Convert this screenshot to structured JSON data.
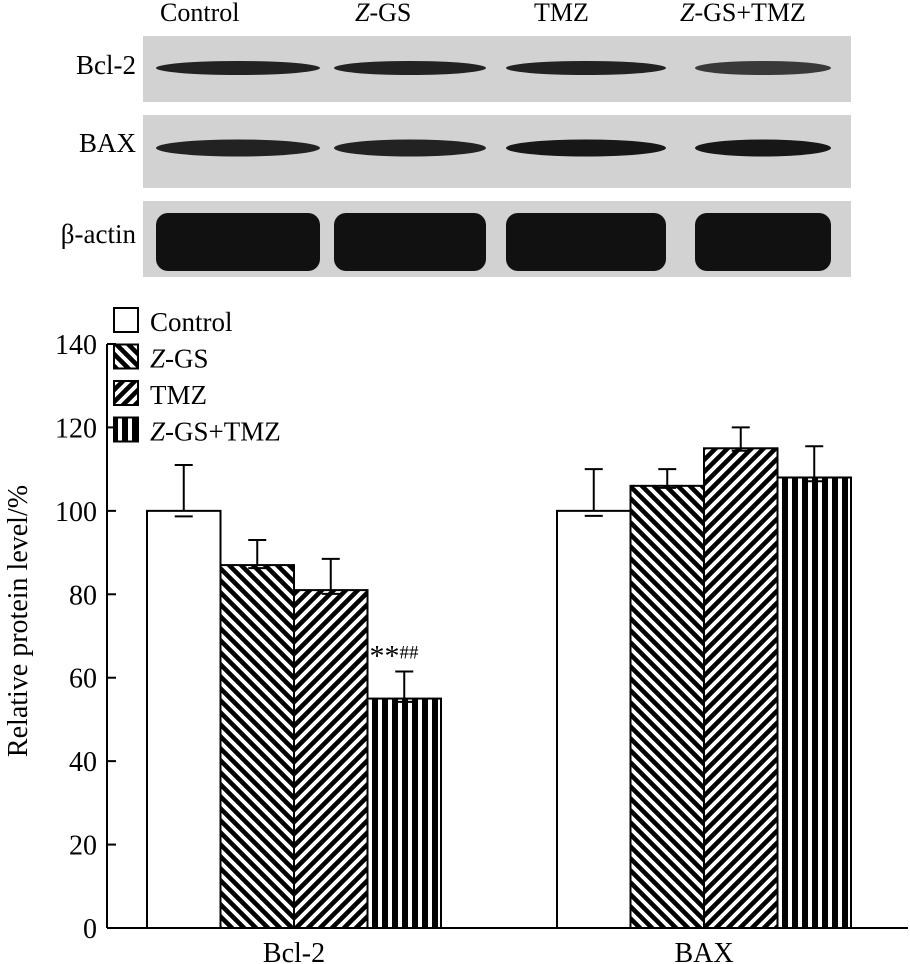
{
  "blot": {
    "lanes": [
      {
        "prefix": "",
        "italic": "",
        "text": "Control"
      },
      {
        "prefix": "",
        "italic": "Z",
        "text": "-GS"
      },
      {
        "prefix": "",
        "italic": "",
        "text": "TMZ"
      },
      {
        "prefix": "",
        "italic": "Z",
        "text": "-GS+TMZ"
      }
    ],
    "rows": [
      {
        "label": "Bcl-2",
        "band_darkness": [
          0.85,
          0.85,
          0.85,
          0.75
        ]
      },
      {
        "label": "BAX",
        "band_darkness": [
          0.85,
          0.85,
          0.9,
          0.9
        ]
      },
      {
        "label": "β-actin",
        "band_darkness": [
          1.0,
          1.0,
          1.0,
          1.0
        ]
      }
    ]
  },
  "chart_data": {
    "type": "bar",
    "categories": [
      "Bcl-2",
      "BAX"
    ],
    "ylabel": "Relative protein level/%",
    "ylim": [
      0,
      140
    ],
    "yticks": [
      0,
      20,
      40,
      60,
      80,
      100,
      120,
      140
    ],
    "grid": false,
    "legend_position": "top-left",
    "series": [
      {
        "name": "Control",
        "italic_prefix": "",
        "pattern": "open",
        "values": [
          100,
          100
        ],
        "errors": [
          11,
          10
        ]
      },
      {
        "name": "-GS",
        "italic_prefix": "Z",
        "pattern": "back-diagonal",
        "values": [
          87,
          106
        ],
        "errors": [
          6,
          4
        ]
      },
      {
        "name": "TMZ",
        "italic_prefix": "",
        "pattern": "forward-diagonal",
        "values": [
          81,
          115
        ],
        "errors": [
          7.5,
          5
        ]
      },
      {
        "name": "-GS+TMZ",
        "italic_prefix": "Z",
        "pattern": "vertical",
        "values": [
          55,
          108
        ],
        "errors": [
          6.5,
          7.5
        ]
      }
    ],
    "annotations": [
      {
        "category": "Bcl-2",
        "series": 3,
        "text": "**",
        "superscript": "##"
      }
    ]
  }
}
